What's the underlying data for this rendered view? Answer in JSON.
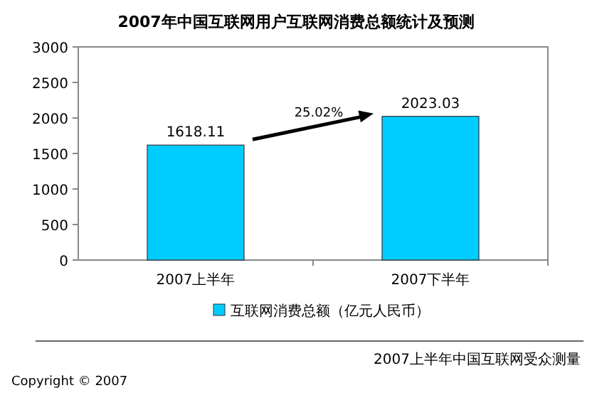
{
  "chart_data": {
    "type": "bar",
    "title": "2007年中国互联网用户互联网消费总额统计及预测",
    "categories": [
      "2007上半年",
      "2007下半年"
    ],
    "series": [
      {
        "name": "互联网消费总额（亿元人民币）",
        "color": "#00ccff",
        "values": [
          1618.11,
          2023.03
        ]
      }
    ],
    "ylim": [
      0,
      3000
    ],
    "yticks": [
      0,
      500,
      1000,
      1500,
      2000,
      2500,
      3000
    ],
    "data_labels": true,
    "legend": "bottom",
    "annotations": [
      "25.02%",
      "2007上半年中国互联网受众测量",
      "Copyright © 2007"
    ]
  }
}
